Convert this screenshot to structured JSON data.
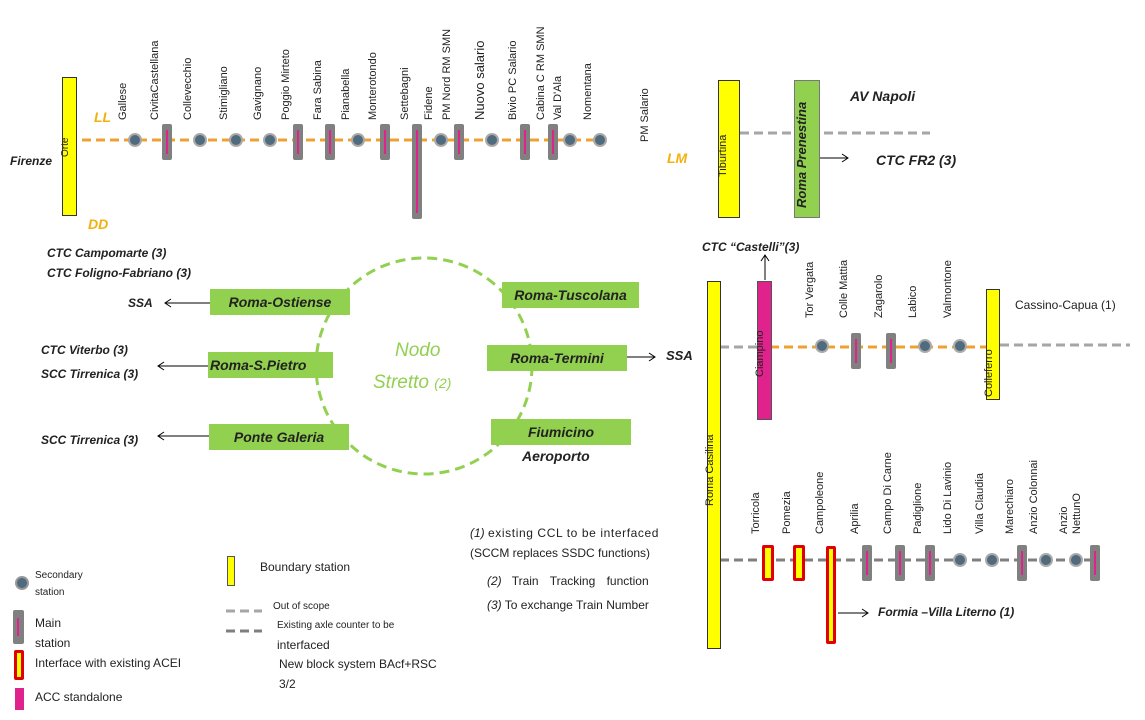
{
  "colors": {
    "boundary": "#ffff00",
    "node": "#92d050",
    "acc": "#e0238c",
    "main_station": "#808080",
    "secondary": "#4f6b7d",
    "track_orange": "#f0a030",
    "orange_text": "#f2b10c",
    "circle_dash": "#92d050"
  },
  "top_left": {
    "left_label": "Firenze",
    "boundary": "Orte",
    "ll": "LL",
    "dd": "DD",
    "stations": [
      "Gallese",
      "CivitaCastellana",
      "Collevecchio",
      "Stimigliano",
      "Gavignano",
      "Poggio Mirteto",
      "Fara Sabina",
      "Pianabella",
      "Monterotondo",
      "Settebagni",
      "Fidene",
      "PM Nord RM SMN",
      "Nuovo salario",
      "Bivio PC Salario",
      "Cabina C RM SMN",
      "Val D'Ala",
      "Nomentana"
    ]
  },
  "top_right": {
    "pm_salario": "PM Salario",
    "lm": "LM",
    "tiburtina": "Tiburtina",
    "roma_prenestina": "Roma Prenestina",
    "av_napoli": "AV Napoli",
    "ctc_fr2": "CTC FR2",
    "ctc_fr2_num": "(3)"
  },
  "center": {
    "nodo_line1": "Nodo",
    "nodo_line2": "Stretto",
    "nodo_num": "(2)",
    "left_ctc1": "CTC Campomarte (3)",
    "left_ctc2": "CTC Foligno-Fabriano (3)",
    "ssa_left": "SSA",
    "ctc_viterbo": "CTC Viterbo (3)",
    "scc_tirrenica1": "SCC Tirrenica (3)",
    "scc_tirrenica2": "SCC Tirrenica (3)",
    "roma_ostiense": "Roma-Ostiense",
    "roma_spietro": "Roma-S.Pietro",
    "ponte_galeria": "Ponte Galeria",
    "roma_tuscolana": "Roma-Tuscolana",
    "roma_termini": "Roma-Termini",
    "fiumicino": "Fiumicino",
    "aeroporto": "Aeroporto",
    "ssa_right": "SSA"
  },
  "right": {
    "ctc_castelli": "CTC “Castelli”(3)",
    "roma_casilina": "Roma Casilina",
    "ciampino": "Ciampino",
    "colleferro": "Colleferro",
    "cassino": "Cassino-Capua (1)",
    "mid_stations": [
      "Tor Vergata",
      "Colle Mattia",
      "Zagarolo",
      "Labico",
      "Valmontone"
    ],
    "low_stations": [
      "Torricola",
      "Pomezia",
      "Campoleone",
      "Aprilia",
      "Campo Di Carne",
      "Padiglione",
      "Lido Di Lavinio",
      "Villa Claudia",
      "Marechiaro",
      "Anzio Colonnai",
      "Anzio",
      "NettunO"
    ],
    "formia": "Formia –Villa Literno (1)"
  },
  "notes": {
    "n1_num": "(1)",
    "n1_a": "existing CCL to be interfaced",
    "n1_b": "(SCCM replaces SSDC functions)",
    "n2_num": "(2)",
    "n2": "Train Tracking function",
    "n3_num": "(3)",
    "n3": "To exchange Train Number"
  },
  "legend": {
    "secondary_a": "Secondary",
    "secondary_b": "station",
    "main_a": "Main",
    "main_b": "station",
    "interface": "Interface with existing ACEI",
    "acc": "ACC standalone",
    "boundary": "Boundary station",
    "out_of_scope": "Out of scope",
    "axle_a": "Existing axle counter to be",
    "axle_b": "interfaced",
    "block_a": "New block system BAcf+RSC",
    "block_b": "3/2"
  }
}
